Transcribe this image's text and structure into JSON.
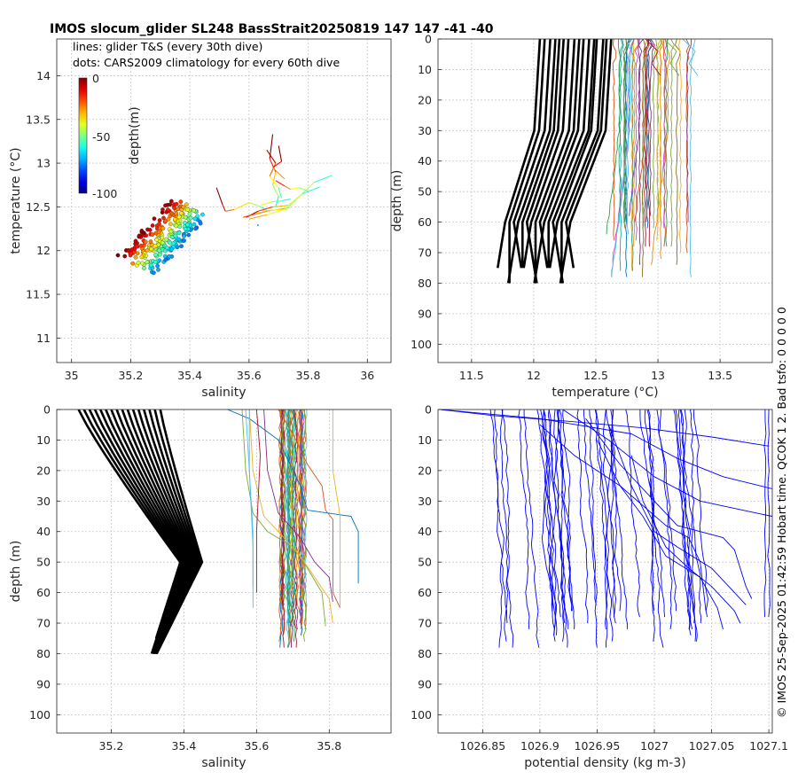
{
  "title": "IMOS slocum_glider SL248 BassStrait20250819 147  147  -41  -40",
  "side_text": "© IMOS 25-Sep-2025 01:42:59 Hobart time. QCOK 1  2. Bad tsfo: 0  0  0  0  0",
  "legend_lines": [
    "lines: glider T&S (every 30th dive)",
    "dots: CARS2009 climatology for every 60th dive"
  ],
  "colorbar": {
    "label": "depth(m)",
    "colormap": "jet",
    "ticks": [
      "0",
      "-50",
      "-100"
    ],
    "range": [
      -100,
      0
    ]
  },
  "chart_data": [
    {
      "id": "ts",
      "type": "scatter",
      "xlabel": "salinity",
      "ylabel": "temperature (°C)",
      "xlim": [
        34.95,
        36.08
      ],
      "ylim": [
        10.72,
        14.42
      ],
      "xticks": [
        "35",
        "35.2",
        "35.4",
        "35.6",
        "35.8",
        "36"
      ],
      "yticks": [
        "11",
        "11.5",
        "12",
        "12.5",
        "13",
        "13.5",
        "14"
      ],
      "grid": true,
      "series": [
        {
          "name": "lines: glider T&S (every 30th dive)",
          "style": "lines",
          "color_by": "depth"
        },
        {
          "name": "dots: CARS2009 climatology for every 60th dive",
          "style": "dots",
          "color_by": "depth"
        }
      ]
    },
    {
      "id": "temp",
      "type": "line",
      "xlabel": "temperature (°C)",
      "ylabel": "depth (m)",
      "xlim": [
        11.23,
        13.92
      ],
      "ylim": [
        106,
        0
      ],
      "xticks": [
        "11.5",
        "12",
        "12.5",
        "13",
        "13.5"
      ],
      "yticks": [
        "0",
        "10",
        "20",
        "30",
        "40",
        "50",
        "60",
        "70",
        "80",
        "90",
        "100"
      ],
      "grid": true,
      "series": [
        {
          "style": "thick black",
          "description": "CARS2009 climatology profiles"
        },
        {
          "style": "thin colored",
          "description": "glider profiles"
        }
      ]
    },
    {
      "id": "sal",
      "type": "line",
      "xlabel": "salinity",
      "ylabel": "depth (m)",
      "xlim": [
        35.05,
        35.97
      ],
      "ylim": [
        106,
        0
      ],
      "xticks": [
        "35.2",
        "35.4",
        "35.6",
        "35.8"
      ],
      "yticks": [
        "0",
        "10",
        "20",
        "30",
        "40",
        "50",
        "60",
        "70",
        "80",
        "90",
        "100"
      ],
      "grid": true,
      "series": [
        {
          "style": "thick black",
          "description": "CARS2009 climatology profiles"
        },
        {
          "style": "thin colored",
          "description": "glider profiles"
        }
      ]
    },
    {
      "id": "dens",
      "type": "line",
      "xlabel": "potential density (kg m-3)",
      "ylabel": "",
      "xlim": [
        1026.811,
        1027.103
      ],
      "ylim": [
        106,
        0
      ],
      "xticks": [
        "1026.85",
        "1026.9",
        "1026.95",
        "1027",
        "1027.05",
        "1027.1"
      ],
      "yticks": [
        "0",
        "10",
        "20",
        "30",
        "40",
        "50",
        "60",
        "70",
        "80",
        "90",
        "100"
      ],
      "grid": true,
      "series": [
        {
          "style": "thin blue",
          "description": "glider density profiles"
        }
      ]
    }
  ]
}
